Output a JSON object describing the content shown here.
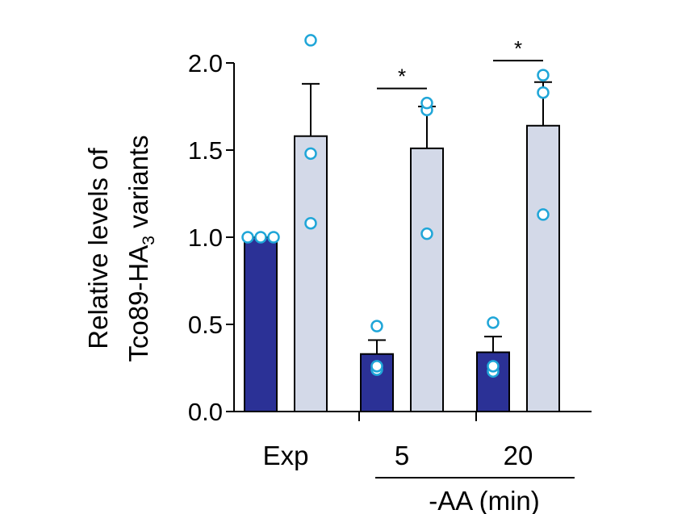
{
  "chart_data": {
    "type": "bar",
    "title": "",
    "ylabel_lines": [
      "Relative  levels of",
      "Tco89-HA",
      "3",
      " variants"
    ],
    "ylim": [
      0,
      2.0
    ],
    "yticks": [
      0.0,
      0.5,
      1.0,
      1.5,
      2.0
    ],
    "ytick_labels": [
      "0.0",
      "0.5",
      "1.0",
      "1.5",
      "2.0"
    ],
    "groups": [
      {
        "label": "Exp",
        "bars": [
          {
            "series": "dark",
            "value": 1.0,
            "err": 0,
            "points": [
              1.0,
              1.0,
              1.0
            ]
          },
          {
            "series": "light",
            "value": 1.58,
            "err": 0.3,
            "points": [
              1.08,
              1.48,
              2.13
            ]
          }
        ]
      },
      {
        "label": "5",
        "bars": [
          {
            "series": "dark",
            "value": 0.33,
            "err": 0.08,
            "points": [
              0.24,
              0.26,
              0.49
            ]
          },
          {
            "series": "light",
            "value": 1.51,
            "err": 0.24,
            "points": [
              1.02,
              1.73,
              1.77
            ]
          }
        ]
      },
      {
        "label": "20",
        "bars": [
          {
            "series": "dark",
            "value": 0.34,
            "err": 0.09,
            "points": [
              0.23,
              0.26,
              0.51
            ]
          },
          {
            "series": "light",
            "value": 1.64,
            "err": 0.25,
            "points": [
              1.13,
              1.83,
              1.93
            ]
          }
        ]
      }
    ],
    "group_caption": "-AA (min)",
    "significance": [
      {
        "group_index": 1,
        "label": "*"
      },
      {
        "group_index": 2,
        "label": "*"
      }
    ],
    "colors": {
      "dark": "#2b3196",
      "light": "#d3d9e8",
      "point_stroke": "#20a6d8",
      "point_fill": "#ffffff"
    }
  }
}
